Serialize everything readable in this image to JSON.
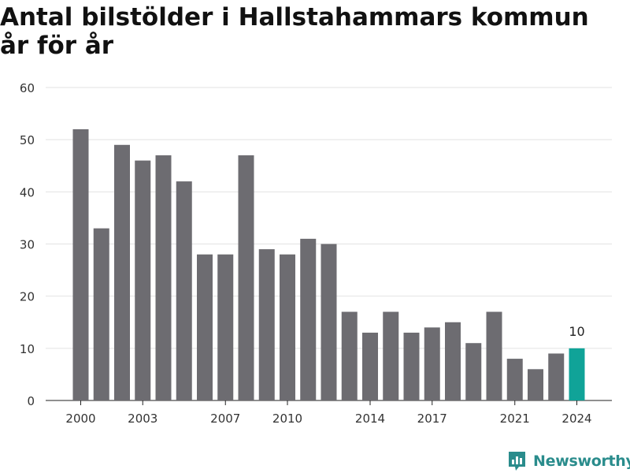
{
  "chart_data": {
    "type": "bar",
    "title": "Antal bilstölder i Hallstahammars kommun år för år",
    "xlabel": "",
    "ylabel": "",
    "categories": [
      2000,
      2001,
      2002,
      2003,
      2004,
      2005,
      2006,
      2007,
      2008,
      2009,
      2010,
      2011,
      2012,
      2013,
      2014,
      2015,
      2016,
      2017,
      2018,
      2019,
      2020,
      2021,
      2022,
      2023,
      2024
    ],
    "values": [
      52,
      33,
      49,
      46,
      47,
      42,
      28,
      28,
      47,
      29,
      28,
      31,
      30,
      17,
      13,
      17,
      13,
      14,
      15,
      11,
      17,
      8,
      6,
      9,
      10
    ],
    "ylim": [
      0,
      60
    ],
    "y_ticks": [
      0,
      10,
      20,
      30,
      40,
      50,
      60
    ],
    "x_ticks": [
      2000,
      2003,
      2007,
      2010,
      2014,
      2017,
      2021,
      2024
    ],
    "grid": true,
    "highlight": {
      "category": 2024,
      "label": "10"
    },
    "colors": {
      "bar": "#6d6c71",
      "highlight": "#10a398",
      "grid": "#e2e2e2",
      "text": "#333333"
    }
  },
  "branding": {
    "name": "Newsworthy",
    "icon": "newsworthy-logo-icon",
    "color": "#2a8c8c"
  }
}
